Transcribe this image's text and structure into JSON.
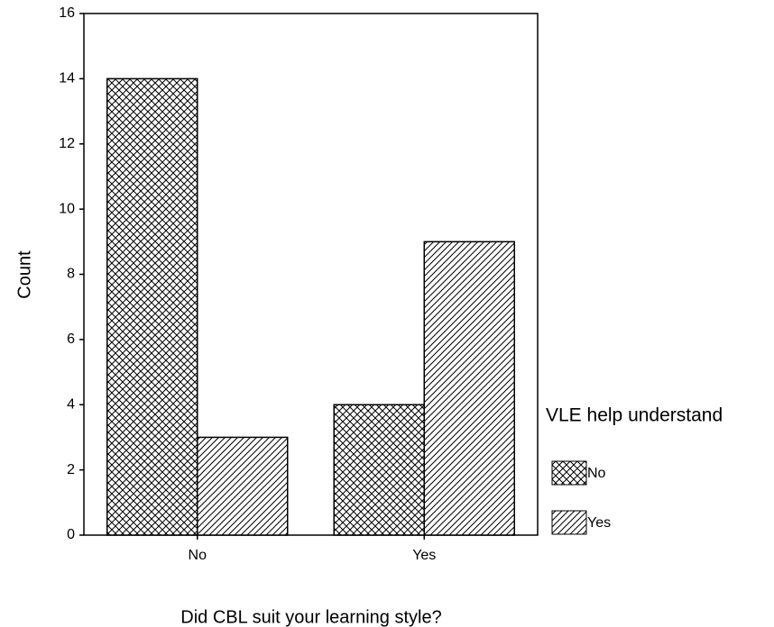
{
  "chart_data": {
    "type": "bar",
    "x_label": "Did CBL suit your learning style?",
    "y_label": "Count",
    "categories": [
      "No",
      "Yes"
    ],
    "series": [
      {
        "name": "No",
        "color": "#000000",
        "pattern": "crosshatch",
        "values": [
          14,
          4
        ]
      },
      {
        "name": "Yes",
        "color": "#000000",
        "pattern": "diagonal",
        "values": [
          3,
          9
        ]
      }
    ],
    "legend_title": "VLE help understand",
    "ylim": [
      0,
      16
    ],
    "yticks": [
      0,
      2,
      4,
      6,
      8,
      10,
      12,
      14,
      16
    ],
    "grid": false,
    "legend": "right"
  }
}
